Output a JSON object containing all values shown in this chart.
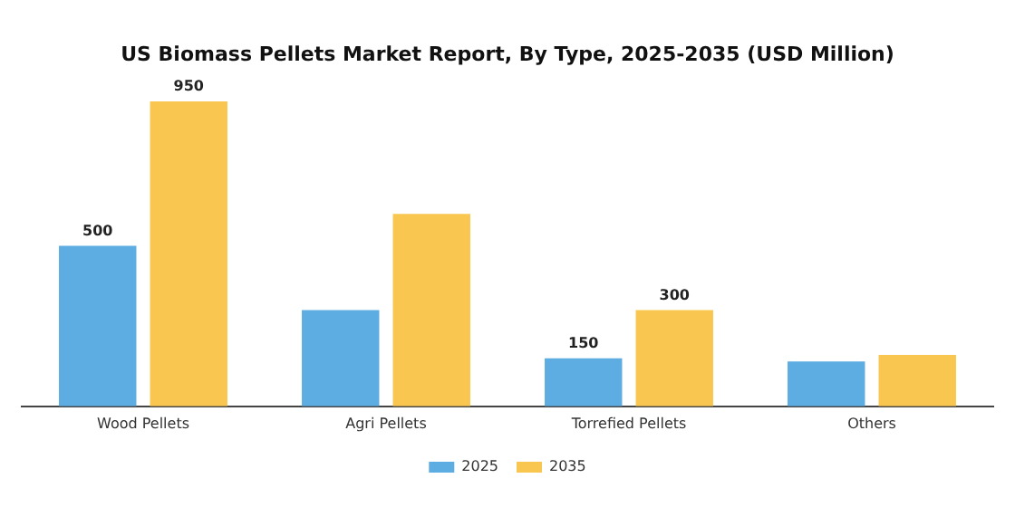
{
  "chart_data": {
    "type": "bar",
    "title": "US Biomass Pellets Market Report, By Type, 2025-2035 (USD Million)",
    "categories": [
      "Wood Pellets",
      "Agri Pellets",
      "Torrefied Pellets",
      "Others"
    ],
    "series": [
      {
        "name": "2025",
        "color": "#5dade2",
        "values": [
          500,
          300,
          150,
          140
        ],
        "value_labels": [
          "500",
          null,
          "150",
          null
        ]
      },
      {
        "name": "2035",
        "color": "#f9c74f",
        "values": [
          950,
          600,
          300,
          160
        ],
        "value_labels": [
          "950",
          null,
          "300",
          null
        ]
      }
    ],
    "legend": "bottom",
    "grid": false
  }
}
